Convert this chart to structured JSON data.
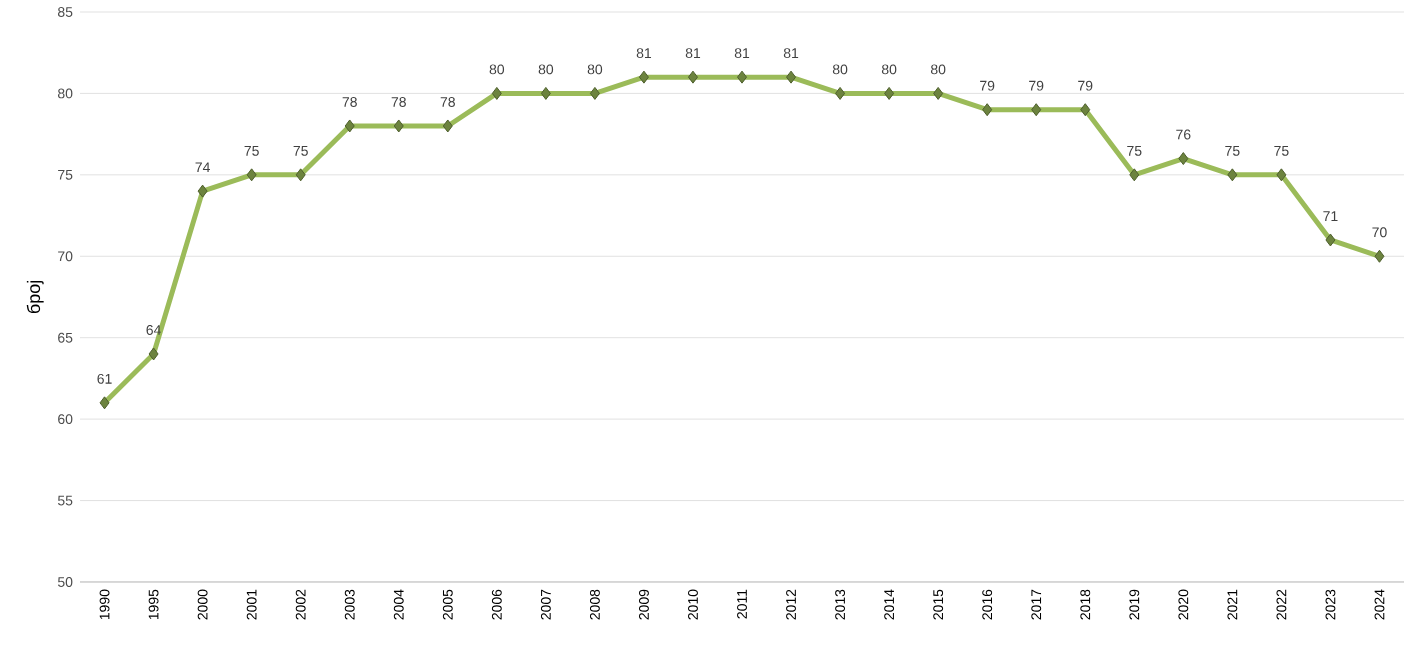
{
  "chart_data": {
    "type": "line",
    "ylabel": "број",
    "categories": [
      "1990",
      "1995",
      "2000",
      "2001",
      "2002",
      "2003",
      "2004",
      "2005",
      "2006",
      "2007",
      "2008",
      "2009",
      "2010",
      "2011",
      "2012",
      "2013",
      "2014",
      "2015",
      "2016",
      "2017",
      "2018",
      "2019",
      "2020",
      "2021",
      "2022",
      "2023",
      "2024"
    ],
    "values": [
      61,
      64,
      74,
      75,
      75,
      78,
      78,
      78,
      80,
      80,
      80,
      81,
      81,
      81,
      81,
      80,
      80,
      80,
      79,
      79,
      79,
      75,
      76,
      75,
      75,
      71,
      70
    ],
    "color": "#9bbb59",
    "ylim": [
      50,
      85
    ],
    "yticks": [
      50,
      55,
      60,
      65,
      70,
      75,
      80,
      85
    ],
    "grid": "y",
    "marker": "diamond",
    "line_style": "solid",
    "data_labels": true
  }
}
